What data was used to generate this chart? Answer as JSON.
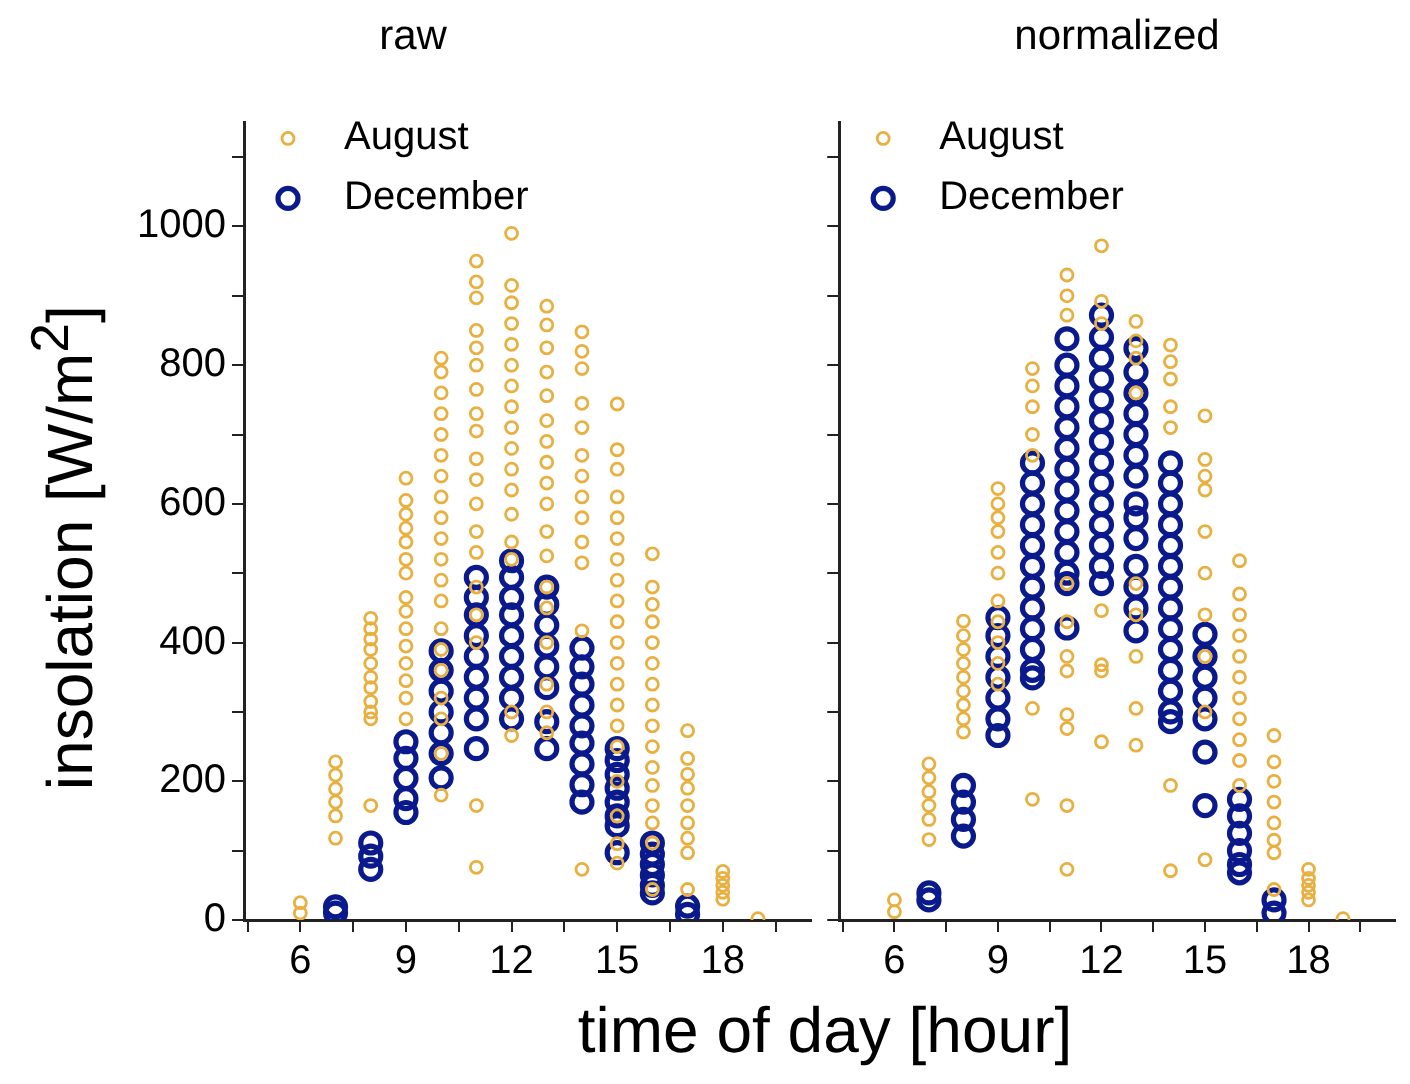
{
  "chart_data": [
    {
      "type": "scatter",
      "title": "raw",
      "xlabel": "time of day [hour]",
      "ylabel": "insolation [W/m$^{2}$]",
      "xlim": [
        4.4,
        20.5
      ],
      "ylim": [
        0,
        1150
      ],
      "xticks": [
        {
          "value": 4.5,
          "label": null
        },
        6,
        {
          "value": 7.5,
          "label": null
        },
        9,
        {
          "value": 10.5,
          "label": null
        },
        12,
        {
          "value": 13.5,
          "label": null
        },
        15,
        {
          "value": 16.5,
          "label": null
        },
        18,
        {
          "value": 19.5,
          "label": null
        }
      ],
      "yticks": [
        0,
        {
          "value": 100,
          "label": null
        },
        200,
        {
          "value": 300,
          "label": null
        },
        400,
        {
          "value": 500,
          "label": null
        },
        600,
        {
          "value": 700,
          "label": null
        },
        800,
        {
          "value": 900,
          "label": null
        },
        1000,
        {
          "value": 1100,
          "label": null
        }
      ],
      "legend": "top left",
      "marker": "circle",
      "grid": false,
      "series": [
        {
          "name": "August",
          "color": "#e8b040",
          "x": [
            6,
            6,
            7,
            7,
            7,
            7,
            7,
            7,
            8,
            8,
            8,
            8,
            8,
            8,
            8,
            8,
            8,
            8,
            8,
            9,
            9,
            9,
            9,
            9,
            9,
            9,
            9,
            9,
            9,
            9,
            9,
            9,
            9,
            9,
            10,
            10,
            10,
            10,
            10,
            10,
            10,
            10,
            10,
            10,
            10,
            10,
            10,
            10,
            10,
            10,
            10,
            10,
            10,
            10,
            11,
            11,
            11,
            11,
            11,
            11,
            11,
            11,
            11,
            11,
            11,
            11,
            11,
            11,
            11,
            11,
            11,
            11,
            11,
            12,
            12,
            12,
            12,
            12,
            12,
            12,
            12,
            12,
            12,
            12,
            12,
            12,
            12,
            12,
            12,
            12,
            13,
            13,
            13,
            13,
            13,
            13,
            13,
            13,
            13,
            13,
            13,
            13,
            13,
            13,
            13,
            13,
            13,
            13,
            14,
            14,
            14,
            14,
            14,
            14,
            14,
            14,
            14,
            14,
            14,
            14,
            14,
            15,
            15,
            15,
            15,
            15,
            15,
            15,
            15,
            15,
            15,
            15,
            15,
            15,
            15,
            15,
            15,
            15,
            15,
            15,
            15,
            16,
            16,
            16,
            16,
            16,
            16,
            16,
            16,
            16,
            16,
            16,
            16,
            16,
            16,
            16,
            16,
            17,
            17,
            17,
            17,
            17,
            17,
            17,
            17,
            17,
            18,
            18,
            18,
            18,
            18,
            19
          ],
          "values": [
            25,
            10,
            228,
            209,
            189,
            170,
            150,
            118,
            435,
            420,
            405,
            390,
            370,
            350,
            335,
            315,
            300,
            290,
            165,
            637,
            605,
            585,
            565,
            545,
            520,
            500,
            465,
            445,
            420,
            395,
            370,
            345,
            320,
            290,
            810,
            790,
            760,
            730,
            700,
            670,
            640,
            610,
            580,
            550,
            520,
            490,
            460,
            420,
            390,
            360,
            320,
            290,
            240,
            180,
            950,
            920,
            897,
            850,
            825,
            800,
            765,
            730,
            705,
            665,
            635,
            600,
            560,
            530,
            480,
            440,
            400,
            165,
            76,
            990,
            915,
            890,
            860,
            830,
            800,
            770,
            740,
            710,
            680,
            650,
            620,
            585,
            545,
            520,
            300,
            266,
            885,
            858,
            825,
            790,
            756,
            720,
            690,
            660,
            630,
            600,
            560,
            525,
            480,
            450,
            400,
            340,
            300,
            270,
            848,
            820,
            795,
            745,
            710,
            670,
            640,
            610,
            580,
            545,
            515,
            417,
            73,
            744,
            678,
            650,
            610,
            580,
            550,
            520,
            490,
            460,
            430,
            400,
            370,
            340,
            310,
            280,
            250,
            200,
            150,
            110,
            82,
            528,
            480,
            455,
            430,
            400,
            370,
            340,
            310,
            280,
            250,
            220,
            194,
            165,
            140,
            111,
            44,
            273,
            233,
            210,
            190,
            165,
            140,
            118,
            97,
            44,
            70,
            60,
            50,
            40,
            30,
            2
          ]
        },
        {
          "name": "December",
          "color": "#0a1a8c",
          "x": [
            7,
            7,
            8,
            8,
            8,
            9,
            9,
            9,
            9,
            9,
            10,
            10,
            10,
            10,
            10,
            10,
            10,
            11,
            11,
            11,
            11,
            11,
            11,
            11,
            11,
            11,
            12,
            12,
            12,
            12,
            12,
            12,
            12,
            12,
            12,
            13,
            13,
            13,
            13,
            13,
            13,
            13,
            13,
            14,
            14,
            14,
            14,
            14,
            14,
            14,
            14,
            14,
            15,
            15,
            15,
            15,
            15,
            15,
            15,
            15,
            16,
            16,
            16,
            16,
            16,
            16,
            17,
            17
          ],
          "values": [
            19,
            10,
            111,
            92,
            73,
            257,
            233,
            204,
            175,
            155,
            388,
            360,
            330,
            300,
            270,
            240,
            205,
            494,
            465,
            440,
            410,
            380,
            350,
            320,
            290,
            247,
            518,
            494,
            465,
            440,
            410,
            380,
            350,
            320,
            290,
            480,
            455,
            425,
            395,
            365,
            335,
            286,
            247,
            392,
            365,
            340,
            310,
            280,
            255,
            225,
            195,
            170,
            247,
            230,
            210,
            190,
            170,
            150,
            136,
            97,
            111,
            95,
            80,
            65,
            50,
            39,
            20,
            8
          ]
        }
      ]
    },
    {
      "type": "scatter",
      "title": "normalized",
      "xlim": [
        4.4,
        20.5
      ],
      "ylim": [
        0,
        1150
      ],
      "tick_labels": "x",
      "xticks": [
        {
          "value": 4.5,
          "label": null
        },
        6,
        {
          "value": 7.5,
          "label": null
        },
        9,
        {
          "value": 10.5,
          "label": null
        },
        12,
        {
          "value": 13.5,
          "label": null
        },
        15,
        {
          "value": 16.5,
          "label": null
        },
        18,
        {
          "value": 19.5,
          "label": null
        }
      ],
      "yticks": [
        0,
        {
          "value": 100,
          "label": null
        },
        200,
        {
          "value": 300,
          "label": null
        },
        400,
        {
          "value": 500,
          "label": null
        },
        600,
        {
          "value": 700,
          "label": null
        },
        800,
        {
          "value": 900,
          "label": null
        },
        1000,
        {
          "value": 1100,
          "label": null
        }
      ],
      "legend": "top left",
      "marker": "circle",
      "grid": false,
      "series": [
        {
          "name": "August",
          "color": "#e8b040",
          "x": [
            6,
            6,
            7,
            7,
            7,
            7,
            7,
            7,
            8,
            8,
            8,
            8,
            8,
            8,
            8,
            8,
            8,
            9,
            9,
            9,
            9,
            9,
            9,
            9,
            9,
            9,
            9,
            9,
            10,
            10,
            10,
            10,
            10,
            10,
            10,
            11,
            11,
            11,
            11,
            11,
            11,
            11,
            11,
            11,
            11,
            11,
            12,
            12,
            12,
            12,
            12,
            12,
            12,
            13,
            13,
            13,
            13,
            13,
            13,
            13,
            13,
            13,
            14,
            14,
            14,
            14,
            14,
            14,
            14,
            15,
            15,
            15,
            15,
            15,
            15,
            15,
            15,
            15,
            15,
            16,
            16,
            16,
            16,
            16,
            16,
            16,
            16,
            16,
            16,
            16,
            17,
            17,
            17,
            17,
            17,
            17,
            17,
            17,
            18,
            18,
            18,
            18,
            18,
            19
          ],
          "values": [
            29,
            12,
            225,
            205,
            185,
            165,
            145,
            116,
            431,
            410,
            390,
            370,
            350,
            330,
            310,
            290,
            271,
            622,
            600,
            580,
            560,
            530,
            500,
            460,
            430,
            400,
            370,
            340,
            795,
            770,
            740,
            700,
            670,
            305,
            174,
            930,
            900,
            872,
            485,
            430,
            380,
            359,
            296,
            276,
            165,
            73,
            972,
            892,
            860,
            446,
            368,
            359,
            257,
            863,
            835,
            810,
            760,
            485,
            440,
            380,
            305,
            252,
            829,
            805,
            780,
            740,
            710,
            194,
            71,
            727,
            664,
            640,
            620,
            560,
            500,
            440,
            380,
            300,
            87,
            518,
            470,
            440,
            410,
            380,
            350,
            320,
            290,
            260,
            230,
            194,
            266,
            228,
            200,
            170,
            140,
            115,
            97,
            44,
            73,
            60,
            50,
            40,
            29,
            2
          ]
        },
        {
          "name": "December",
          "color": "#0a1a8c",
          "x": [
            7,
            7,
            8,
            8,
            8,
            8,
            9,
            9,
            9,
            9,
            9,
            9,
            9,
            10,
            10,
            10,
            10,
            10,
            10,
            10,
            10,
            10,
            10,
            10,
            10,
            11,
            11,
            11,
            11,
            11,
            11,
            11,
            11,
            11,
            11,
            11,
            11,
            11,
            11,
            12,
            12,
            12,
            12,
            12,
            12,
            12,
            12,
            12,
            12,
            12,
            12,
            12,
            12,
            13,
            13,
            13,
            13,
            13,
            13,
            13,
            13,
            13,
            13,
            13,
            13,
            13,
            13,
            14,
            14,
            14,
            14,
            14,
            14,
            14,
            14,
            14,
            14,
            14,
            14,
            14,
            14,
            15,
            15,
            15,
            15,
            15,
            15,
            15,
            16,
            16,
            16,
            16,
            16,
            16,
            17,
            17
          ],
          "values": [
            39,
            29,
            194,
            170,
            145,
            121,
            436,
            410,
            380,
            350,
            320,
            290,
            266,
            659,
            630,
            600,
            570,
            540,
            510,
            480,
            450,
            420,
            390,
            360,
            349,
            838,
            800,
            770,
            740,
            710,
            680,
            650,
            620,
            590,
            560,
            530,
            500,
            485,
            421,
            872,
            840,
            810,
            780,
            750,
            720,
            690,
            660,
            630,
            600,
            570,
            540,
            510,
            485,
            824,
            790,
            760,
            730,
            700,
            670,
            640,
            600,
            580,
            550,
            510,
            480,
            450,
            417,
            659,
            630,
            600,
            570,
            540,
            510,
            480,
            450,
            420,
            390,
            360,
            330,
            300,
            286,
            412,
            380,
            350,
            320,
            290,
            242,
            165,
            174,
            150,
            125,
            100,
            80,
            68,
            29,
            10
          ]
        }
      ]
    }
  ]
}
